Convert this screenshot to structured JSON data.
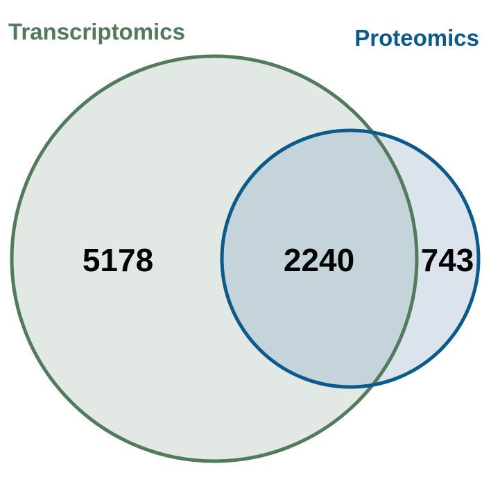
{
  "sets": [
    {
      "name": "Transcriptomics",
      "color": "#527a5c",
      "fill": "#e2e9e4"
    },
    {
      "name": "Proteomics",
      "color": "#0b5a8a",
      "fill": "#dbe4ec"
    }
  ],
  "regions": {
    "transcriptomics_only": "5178",
    "intersection": "2240",
    "proteomics_only": "743"
  },
  "colors": {
    "intersection_fill": "#c4d4da",
    "count_text": "#000000"
  }
}
